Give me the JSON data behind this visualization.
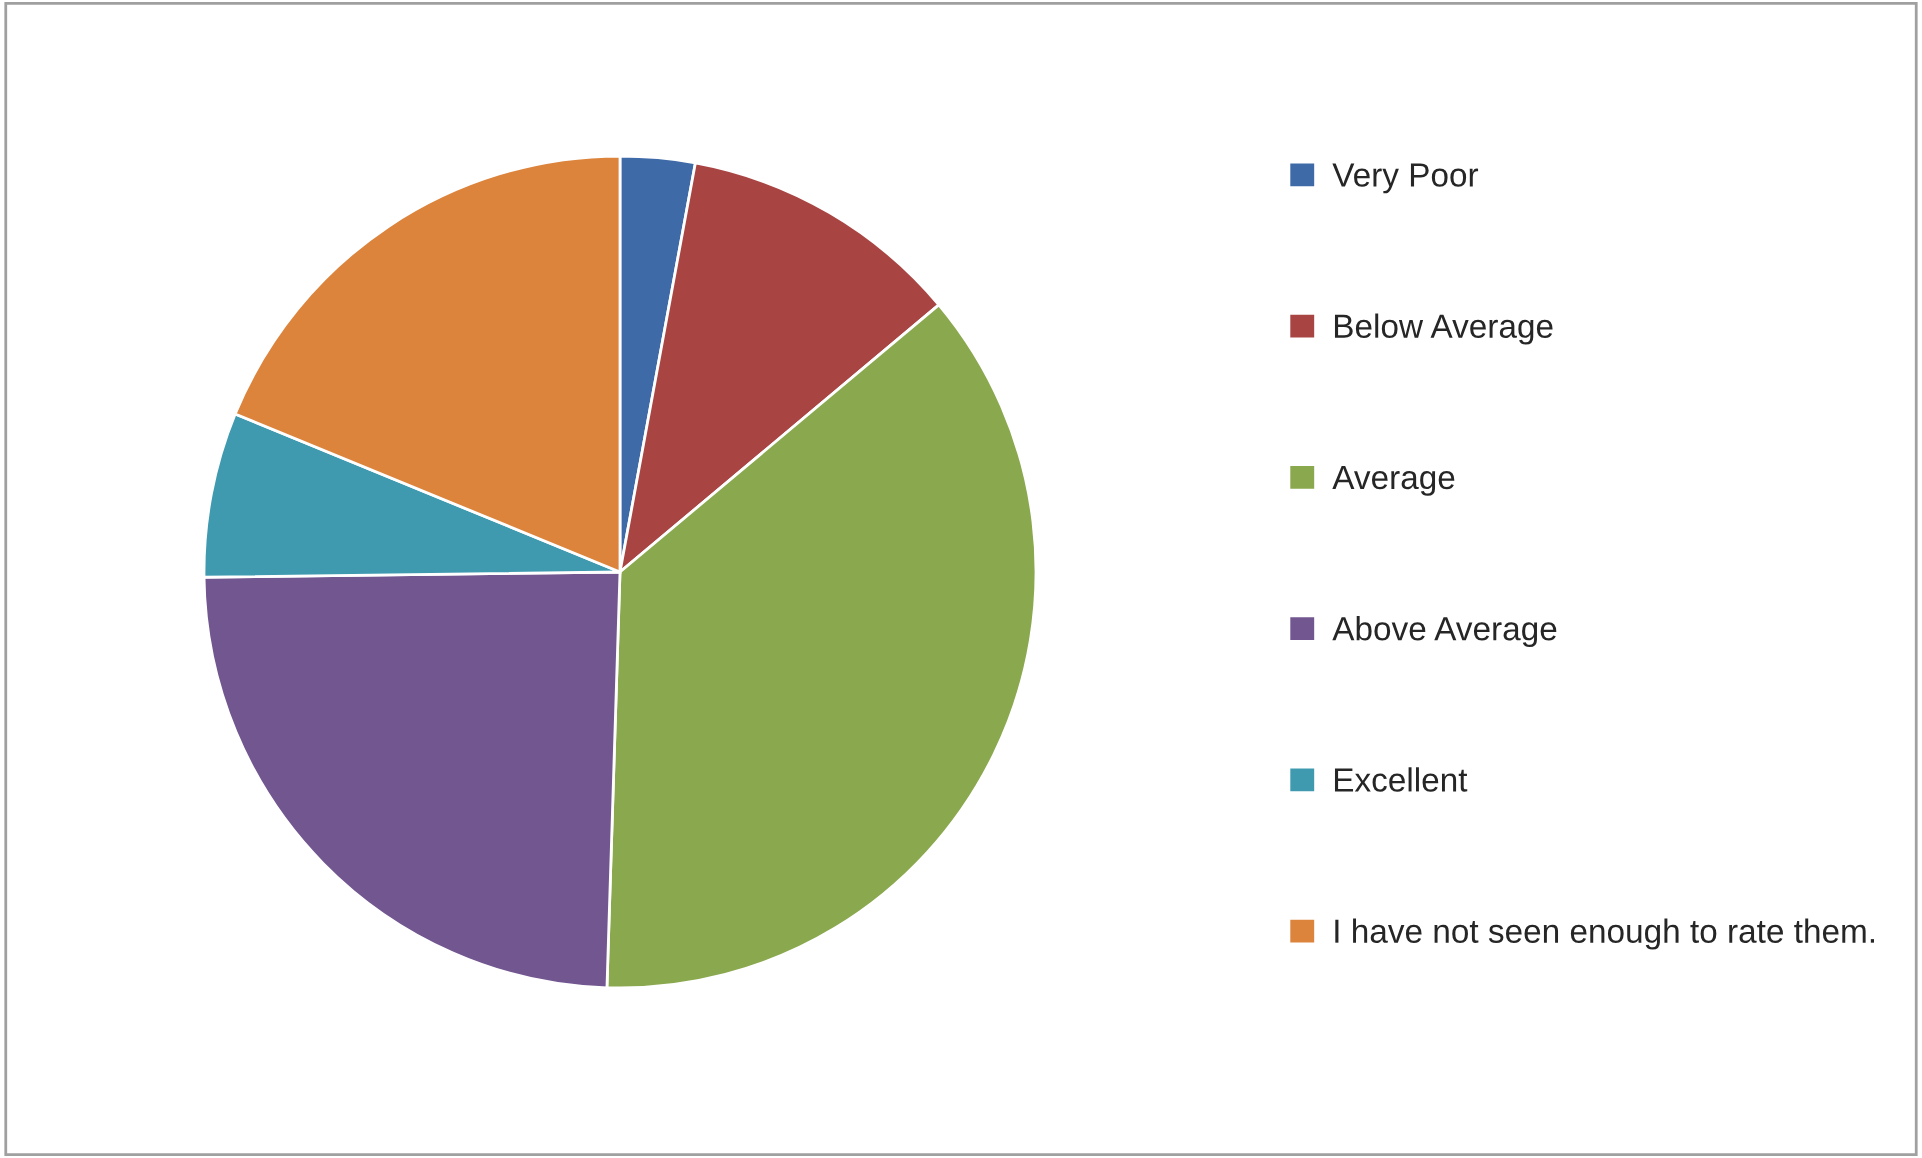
{
  "chart_data": {
    "type": "pie",
    "categories": [
      "Very Poor",
      "Below Average",
      "Average",
      "Above Average",
      "Excellent",
      "I have not seen enough to rate them."
    ],
    "values": [
      2.9,
      11.0,
      36.6,
      24.3,
      6.4,
      18.8
    ],
    "colors": [
      "#3e6aa8",
      "#a84543",
      "#8aa84e",
      "#725690",
      "#3f9ab0",
      "#dc843c"
    ],
    "legend": "right"
  }
}
